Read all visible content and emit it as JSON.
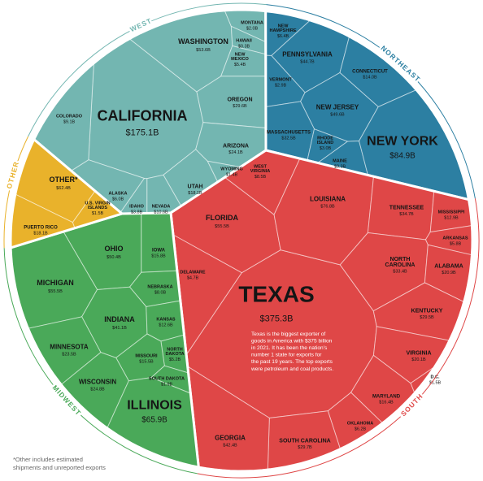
{
  "chart_data": {
    "type": "voronoi",
    "regions": [
      {
        "name": "WEST",
        "color": "#73b6b1",
        "categories": [
          "CALIFORNIA",
          "WASHINGTON",
          "MONTANA",
          "HAWAII",
          "NEW MEXICO",
          "OREGON",
          "ARIZONA",
          "WYOMING",
          "UTAH",
          "NEVADA",
          "IDAHO",
          "ALASKA",
          "COLORADO"
        ],
        "values": [
          175.1,
          53.6,
          2.0,
          0.3,
          5.4,
          29.6,
          24.1,
          1.4,
          18.1,
          10.6,
          3.8,
          6.0,
          9.1
        ],
        "value_labels": [
          "$175.1B",
          "$53.6B",
          "$2.0B",
          "$0.3B",
          "$5.4B",
          "$29.6B",
          "$24.1B",
          "$1.4B",
          "$18.1B",
          "$10.6B",
          "$3.8B",
          "$6.0B",
          "$9.1B"
        ]
      },
      {
        "name": "NORTHEAST",
        "color": "#2c7fa2",
        "categories": [
          "NEW HAMPSHIRE",
          "PENNSYLVANIA",
          "CONNECTICUT",
          "VERMONT",
          "NEW JERSEY",
          "MASSACHUSETTS",
          "RHODE ISLAND",
          "MAINE",
          "NEW YORK"
        ],
        "values": [
          6.4,
          44.7,
          14.0,
          2.9,
          49.6,
          32.5,
          3.0,
          3.3,
          84.9
        ],
        "value_labels": [
          "$6.4B",
          "$44.7B",
          "$14.0B",
          "$2.9B",
          "$49.6B",
          "$32.5B",
          "$3.0B",
          "$3.3B",
          "$84.9B"
        ]
      },
      {
        "name": "SOUTH",
        "color": "#df4747",
        "categories": [
          "TEXAS",
          "FLORIDA",
          "WEST VIRGINIA",
          "LOUISIANA",
          "TENNESSEE",
          "MISSISSIPPI",
          "ARKANSAS",
          "DELAWARE",
          "NORTH CAROLINA",
          "ALABAMA",
          "KENTUCKY",
          "VIRGINIA",
          "D.C.",
          "MARYLAND",
          "OKLAHOMA",
          "SOUTH CAROLINA",
          "GEORGIA"
        ],
        "values": [
          375.3,
          55.5,
          8.5,
          76.8,
          34.7,
          12.9,
          5.8,
          4.7,
          33.4,
          20.9,
          29.5,
          20.1,
          1.5,
          16.4,
          6.2,
          29.7,
          42.4
        ],
        "value_labels": [
          "$375.3B",
          "$55.5B",
          "$8.5B",
          "$76.8B",
          "$34.7B",
          "$12.9B",
          "$5.8B",
          "$4.7B",
          "$33.4B",
          "$20.9B",
          "$29.5B",
          "$20.1B",
          "$1.5B",
          "$16.4B",
          "$6.2B",
          "$29.7B",
          "$42.4B"
        ]
      },
      {
        "name": "MIDWEST",
        "color": "#4aa959",
        "categories": [
          "OHIO",
          "IOWA",
          "MICHIGAN",
          "NEBRASKA",
          "INDIANA",
          "KANSAS",
          "MINNESOTA",
          "NORTH DAKOTA",
          "MISSOURI",
          "WISCONSIN",
          "SOUTH DAKOTA",
          "ILLINOIS"
        ],
        "values": [
          50.4,
          15.8,
          55.5,
          8.0,
          41.1,
          12.6,
          23.5,
          5.2,
          15.5,
          24.8,
          1.9,
          65.9
        ],
        "value_labels": [
          "$50.4B",
          "$15.8B",
          "$55.5B",
          "$8.0B",
          "$41.1B",
          "$12.6B",
          "$23.5B",
          "$5.2B",
          "$15.5B",
          "$24.8B",
          "$1.9B",
          "$65.9B"
        ]
      },
      {
        "name": "OTHER",
        "color": "#e9b22b",
        "categories": [
          "OTHER*",
          "PUERTO RICO",
          "U.S. VIRGIN ISLANDS"
        ],
        "values": [
          62.4,
          18.1,
          1.5
        ],
        "value_labels": [
          "$62.4B",
          "$18.1B",
          "$1.5B"
        ]
      }
    ],
    "annotation": [
      "Texas is the biggest exporter of",
      "goods in America with $375 billion",
      "in 2021. It has been the nation's",
      "number 1 state for exports for",
      "the past 19 years. The top exports",
      "were petroleum and coal products."
    ],
    "footnote": [
      "*Other includes estimated",
      "shipments and unreported exports"
    ]
  }
}
